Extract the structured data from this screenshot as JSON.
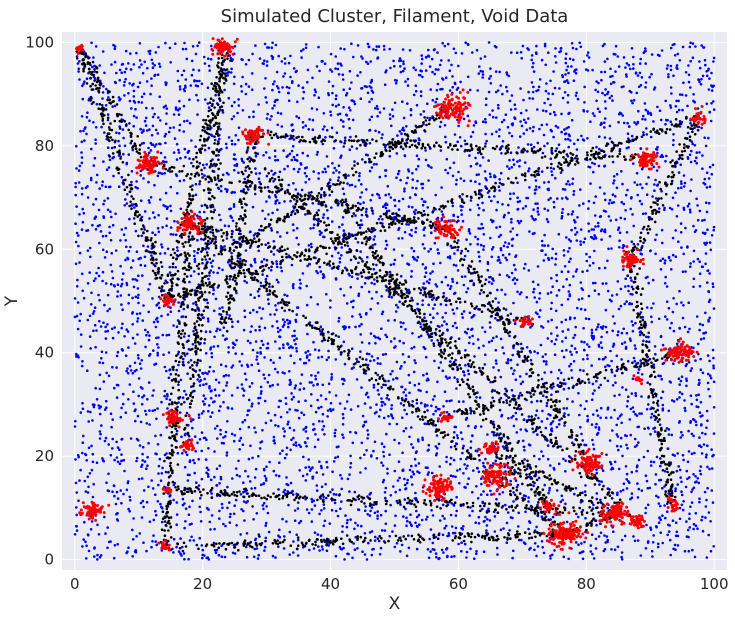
{
  "chart_data": {
    "type": "scatter",
    "title": "Simulated Cluster, Filament, Void Data",
    "xlabel": "X",
    "ylabel": "Y",
    "xlim": [
      -2,
      102
    ],
    "ylim": [
      -2,
      102
    ],
    "xticks": [
      0,
      20,
      40,
      60,
      80,
      100
    ],
    "yticks": [
      0,
      20,
      40,
      60,
      80,
      100
    ],
    "grid": true,
    "legend": "none",
    "colors": {
      "background": "#EAEAF2",
      "grid": "#FFFFFF",
      "void": "#0000FF",
      "filament": "#000000",
      "cluster": "#FF0000"
    },
    "void_points": {
      "count": 6000,
      "x_range": [
        0,
        100
      ],
      "y_range": [
        0,
        100
      ]
    },
    "clusters": [
      {
        "x": 0.8,
        "y": 98.8,
        "n": 20,
        "sigma": 0.4
      },
      {
        "x": 23.5,
        "y": 99.0,
        "n": 70,
        "sigma": 0.8
      },
      {
        "x": 28.0,
        "y": 82.0,
        "n": 60,
        "sigma": 0.8
      },
      {
        "x": 11.5,
        "y": 76.5,
        "n": 70,
        "sigma": 0.9
      },
      {
        "x": 18.0,
        "y": 65.0,
        "n": 70,
        "sigma": 0.9
      },
      {
        "x": 14.5,
        "y": 50.0,
        "n": 25,
        "sigma": 0.5
      },
      {
        "x": 15.5,
        "y": 27.5,
        "n": 50,
        "sigma": 0.7
      },
      {
        "x": 17.5,
        "y": 22.0,
        "n": 25,
        "sigma": 0.5
      },
      {
        "x": 3.0,
        "y": 9.5,
        "n": 70,
        "sigma": 0.9
      },
      {
        "x": 14.5,
        "y": 13.5,
        "n": 12,
        "sigma": 0.3
      },
      {
        "x": 14.0,
        "y": 2.5,
        "n": 15,
        "sigma": 0.4
      },
      {
        "x": 59.0,
        "y": 87.5,
        "n": 110,
        "sigma": 1.2
      },
      {
        "x": 58.0,
        "y": 64.0,
        "n": 70,
        "sigma": 0.9
      },
      {
        "x": 70.5,
        "y": 46.0,
        "n": 25,
        "sigma": 0.5
      },
      {
        "x": 58.0,
        "y": 27.5,
        "n": 20,
        "sigma": 0.5
      },
      {
        "x": 65.0,
        "y": 21.5,
        "n": 35,
        "sigma": 0.6
      },
      {
        "x": 66.0,
        "y": 16.0,
        "n": 90,
        "sigma": 1.1
      },
      {
        "x": 57.0,
        "y": 14.0,
        "n": 90,
        "sigma": 1.1
      },
      {
        "x": 74.0,
        "y": 10.5,
        "n": 25,
        "sigma": 0.5
      },
      {
        "x": 76.5,
        "y": 5.0,
        "n": 130,
        "sigma": 1.3
      },
      {
        "x": 80.5,
        "y": 18.5,
        "n": 90,
        "sigma": 1.0
      },
      {
        "x": 84.5,
        "y": 9.0,
        "n": 100,
        "sigma": 1.1
      },
      {
        "x": 88.0,
        "y": 7.5,
        "n": 40,
        "sigma": 0.7
      },
      {
        "x": 93.5,
        "y": 10.5,
        "n": 20,
        "sigma": 0.5
      },
      {
        "x": 88.0,
        "y": 35.0,
        "n": 10,
        "sigma": 0.3
      },
      {
        "x": 94.5,
        "y": 40.0,
        "n": 90,
        "sigma": 1.0
      },
      {
        "x": 87.0,
        "y": 58.0,
        "n": 60,
        "sigma": 0.8
      },
      {
        "x": 89.5,
        "y": 77.5,
        "n": 70,
        "sigma": 0.9
      },
      {
        "x": 97.5,
        "y": 85.5,
        "n": 30,
        "sigma": 0.6
      }
    ],
    "filaments": [
      {
        "from": [
          0.8,
          98.8
        ],
        "to": [
          14.5,
          50.0
        ]
      },
      {
        "from": [
          0.8,
          98.8
        ],
        "to": [
          11.5,
          76.5
        ]
      },
      {
        "from": [
          23.5,
          99.0
        ],
        "to": [
          14.5,
          50.0
        ]
      },
      {
        "from": [
          23.5,
          99.0
        ],
        "to": [
          17.5,
          22.0
        ]
      },
      {
        "from": [
          18.0,
          65.0
        ],
        "to": [
          14.0,
          2.5
        ]
      },
      {
        "from": [
          18.0,
          65.0
        ],
        "to": [
          70.5,
          46.0
        ]
      },
      {
        "from": [
          28.0,
          82.0
        ],
        "to": [
          23.5,
          45.0
        ]
      },
      {
        "from": [
          14.5,
          50.0
        ],
        "to": [
          97.5,
          85.5
        ]
      },
      {
        "from": [
          11.5,
          76.5
        ],
        "to": [
          58.0,
          64.0
        ]
      },
      {
        "from": [
          28.0,
          82.0
        ],
        "to": [
          89.5,
          77.5
        ]
      },
      {
        "from": [
          25.0,
          60.0
        ],
        "to": [
          59.0,
          87.5
        ]
      },
      {
        "from": [
          18.0,
          65.0
        ],
        "to": [
          76.5,
          5.0
        ]
      },
      {
        "from": [
          30.0,
          75.0
        ],
        "to": [
          88.0,
          7.5
        ]
      },
      {
        "from": [
          40.0,
          72.0
        ],
        "to": [
          74.0,
          10.5
        ]
      },
      {
        "from": [
          14.5,
          13.5
        ],
        "to": [
          84.5,
          9.0
        ]
      },
      {
        "from": [
          14.0,
          2.5
        ],
        "to": [
          76.5,
          5.0
        ]
      },
      {
        "from": [
          76.5,
          5.0
        ],
        "to": [
          84.5,
          9.0
        ]
      },
      {
        "from": [
          58.0,
          27.5
        ],
        "to": [
          94.5,
          40.0
        ]
      },
      {
        "from": [
          65.0,
          21.5
        ],
        "to": [
          84.5,
          9.0
        ]
      },
      {
        "from": [
          65.0,
          21.5
        ],
        "to": [
          74.0,
          10.5
        ]
      },
      {
        "from": [
          97.5,
          85.5
        ],
        "to": [
          87.0,
          58.0
        ]
      },
      {
        "from": [
          87.0,
          58.0
        ],
        "to": [
          93.5,
          10.5
        ]
      },
      {
        "from": [
          58.0,
          64.0
        ],
        "to": [
          80.5,
          18.5
        ]
      }
    ],
    "filament_points_per_unit": 3.2
  }
}
